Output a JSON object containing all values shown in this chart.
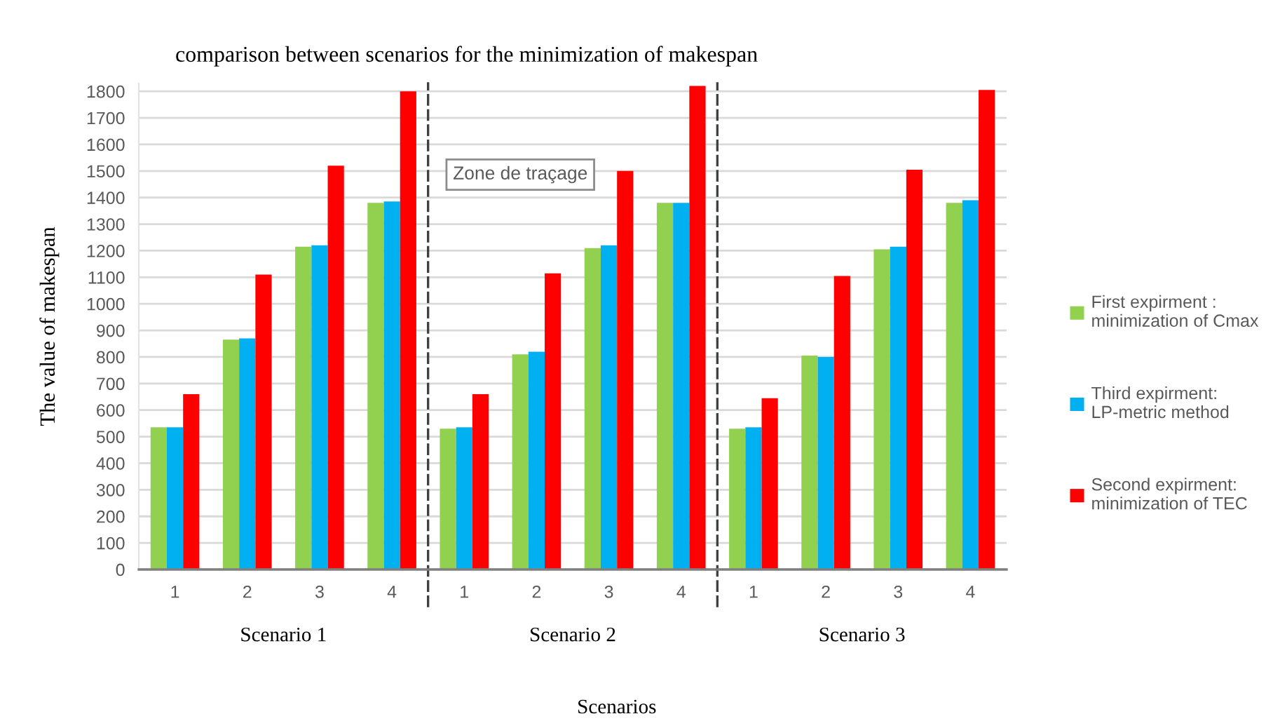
{
  "chart_data": [
    {
      "type": "bar",
      "title": "comparison between scenarios for the minimization of makespan",
      "ylabel": "The value of makespan",
      "xlabel": "Scenario 1",
      "categories": [
        "1",
        "2",
        "3",
        "4"
      ],
      "series": [
        {
          "color": "#92d050",
          "values": [
            535,
            865,
            1215,
            1380
          ]
        },
        {
          "color": "#00b0f0",
          "values": [
            535,
            870,
            1220,
            1385
          ]
        },
        {
          "color": "#ff0000",
          "values": [
            660,
            1110,
            1520,
            1800
          ]
        }
      ],
      "ylim": [
        0,
        1830
      ],
      "yticks": [
        0,
        100,
        200,
        300,
        400,
        500,
        600,
        700,
        800,
        900,
        1000,
        1100,
        1200,
        1300,
        1400,
        1500,
        1600,
        1700,
        1800
      ],
      "grid": "y"
    },
    {
      "type": "bar",
      "xlabel": "Scenario 2",
      "categories": [
        "1",
        "2",
        "3",
        "4"
      ],
      "series": [
        {
          "color": "#92d050",
          "values": [
            530,
            810,
            1210,
            1380
          ]
        },
        {
          "color": "#00b0f0",
          "values": [
            535,
            820,
            1220,
            1380
          ]
        },
        {
          "color": "#ff0000",
          "values": [
            660,
            1115,
            1500,
            1820
          ]
        }
      ],
      "ylim": [
        0,
        1830
      ],
      "yticks": [
        0,
        100,
        200,
        300,
        400,
        500,
        600,
        700,
        800,
        900,
        1000,
        1100,
        1200,
        1300,
        1400,
        1500,
        1600,
        1700,
        1800
      ],
      "grid": "y",
      "tick_labels": "x",
      "annotations": [
        "Zone de traçage",
        "Scenarios"
      ]
    },
    {
      "type": "bar",
      "xlabel": "Scenario 3",
      "categories": [
        "1",
        "2",
        "3",
        "4"
      ],
      "series": [
        {
          "name": "First expirment : minimization of Cmax",
          "color": "#92d050",
          "values": [
            530,
            805,
            1205,
            1380
          ]
        },
        {
          "name": "Third expirment: LP-metric method",
          "color": "#00b0f0",
          "values": [
            535,
            800,
            1215,
            1390
          ]
        },
        {
          "name": "Second expirment: minimization of TEC",
          "color": "#ff0000",
          "values": [
            645,
            1105,
            1505,
            1805
          ]
        }
      ],
      "ylim": [
        0,
        1830
      ],
      "yticks": [
        0,
        100,
        200,
        300,
        400,
        500,
        600,
        700,
        800,
        900,
        1000,
        1100,
        1200,
        1300,
        1400,
        1500,
        1600,
        1700,
        1800
      ],
      "grid": "y",
      "tick_labels": "x",
      "legend": "right"
    }
  ]
}
